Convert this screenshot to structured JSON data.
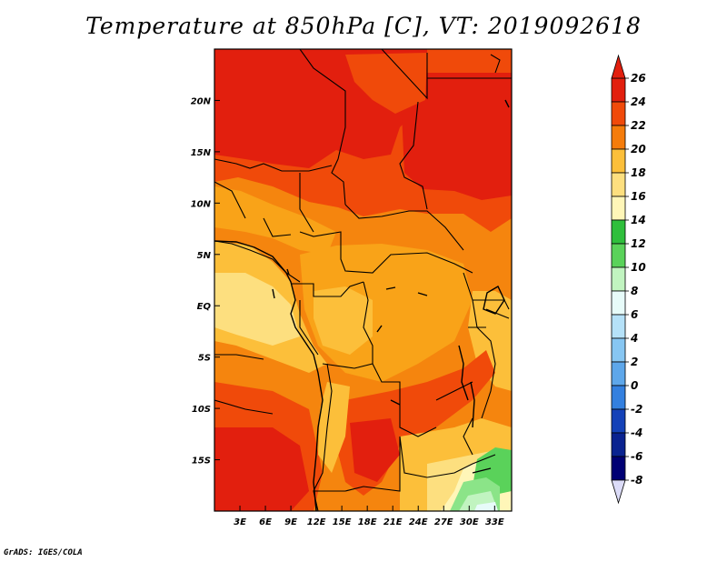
{
  "title": "Temperature at 850hPa [C], VT: 2019092618",
  "credit": "GrADS: IGES/COLA",
  "map": {
    "lon_range": [
      0,
      35
    ],
    "lat_range": [
      -20,
      25
    ],
    "x_ticks": [
      "3E",
      "6E",
      "9E",
      "12E",
      "15E",
      "18E",
      "21E",
      "24E",
      "27E",
      "30E",
      "33E"
    ],
    "y_ticks": [
      "20N",
      "15N",
      "10N",
      "5N",
      "EQ",
      "5S",
      "10S",
      "15S"
    ]
  },
  "colorbar": {
    "labels": [
      "26",
      "24",
      "22",
      "20",
      "18",
      "16",
      "14",
      "12",
      "10",
      "8",
      "6",
      "4",
      "2",
      "0",
      "-2",
      "-4",
      "-6",
      "-8"
    ],
    "colors": [
      "#e21f0e",
      "#f04a0a",
      "#f57c0b",
      "#f9a318",
      "#fcbf3a",
      "#fddf7f",
      "#fff6b8",
      "#2fbf3c",
      "#5ad25a",
      "#8be488",
      "#c1f4c0",
      "#e7fbf9",
      "#b5e1f8",
      "#87c6f2",
      "#5ea7ea",
      "#3480df",
      "#1f5fd0",
      "#1442b8",
      "#0a2390",
      "#000074"
    ],
    "over_color": "#e21f0e",
    "under_color": "#dcdcf8"
  }
}
